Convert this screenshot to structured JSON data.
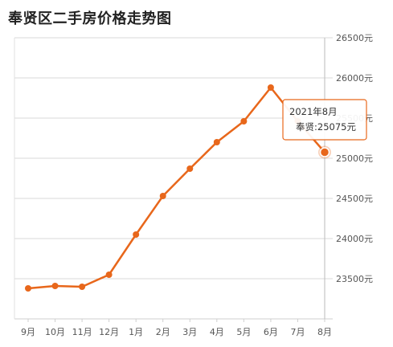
{
  "chart_data": {
    "type": "line",
    "title": "奉贤区二手房价格走势图",
    "categories": [
      "9月",
      "10月",
      "11月",
      "12月",
      "1月",
      "2月",
      "3月",
      "4月",
      "5月",
      "6月",
      "7月",
      "8月"
    ],
    "series": [
      {
        "name": "奉贤",
        "values": [
          23380,
          23410,
          23400,
          23550,
          24050,
          24530,
          24870,
          25200,
          25460,
          25880,
          25460,
          25075
        ]
      }
    ],
    "y_ticks": [
      "23500元",
      "24000元",
      "24500元",
      "25000元",
      "25500元",
      "26000元",
      "26500元"
    ],
    "y_tick_values": [
      23500,
      24000,
      24500,
      25000,
      25500,
      26000,
      26500
    ],
    "ylim": [
      23000,
      26500
    ],
    "grid": true,
    "y_axis_side": "right",
    "line_color": "#e8671b",
    "tooltip": {
      "date": "2021年8月",
      "label": "奉贤:25075元",
      "index": 11
    }
  }
}
